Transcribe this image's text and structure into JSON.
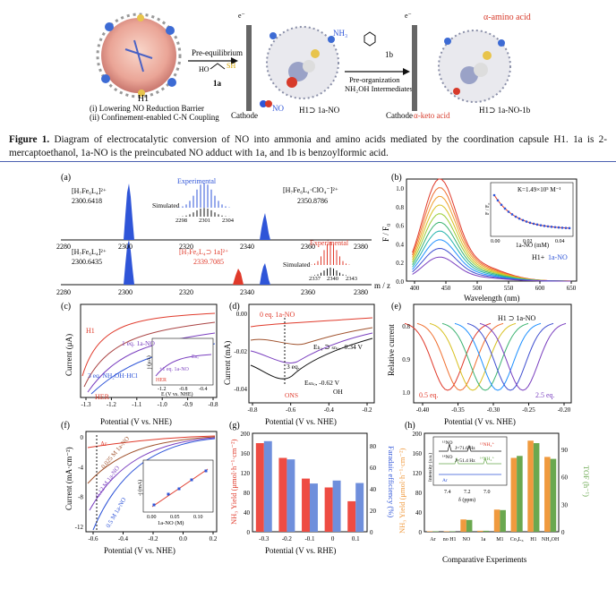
{
  "scheme": {
    "h1_label": "H1",
    "h1_notes": [
      "(i) Lowering NO Reduction Barrier",
      "(ii) Confinement-enabled C-N Coupling"
    ],
    "step1": "Pre-equilibrium",
    "reagent_1a": "1a",
    "sh": "SH",
    "ho": "HO",
    "cathode": "Cathode",
    "no": "NO",
    "nh3": "NH₃",
    "complex1": "H1⊃ 1a-NO",
    "step2_reagent": "1b",
    "step2a": "Pre-organization",
    "step2b": "NH₂OH Intermediates",
    "cathode2": "Cathode",
    "keto": "α-keto acid",
    "amino": "α-amino acid",
    "complex2": "H1⊃ 1a-NO-1b",
    "electron": "e⁻"
  },
  "caption": {
    "label": "Figure 1.",
    "text": "Diagram of electrocatalytic conversion of NO into ammonia and amino acids mediated by the coordination capsule H1. 1a is 2-mercaptoethanol, 1a-NO is the preincubated NO adduct with 1a, and 1b is benzoylformic acid."
  },
  "panels": {
    "a": {
      "label": "(a)",
      "xlabel": "m / z",
      "ticks": [
        "2280",
        "2300",
        "2320",
        "2340",
        "2360",
        "2380"
      ],
      "top": {
        "peak1": "[H₇Fe₆L₄]²⁺",
        "peak1_mz": "2300.6418",
        "peak2": "[H₇Fe₆L₄·ClO₄⁻]²⁺",
        "peak2_mz": "2350.8786",
        "exp": "Experimental",
        "sim": "Simulated",
        "inset_ticks": [
          "2298",
          "2301",
          "2304"
        ]
      },
      "bottom": {
        "peak1": "[H₇Fe₆L₄]²⁺",
        "peak1_mz": "2300.6435",
        "peak2": "[H₇Fe₆L₄⊃ 1a]²⁺",
        "peak2_mz": "2339.7085",
        "exp": "Experimental",
        "sim": "Simulated",
        "inset_ticks": [
          "2337",
          "2340",
          "2343"
        ]
      }
    },
    "b": {
      "label": "(b)",
      "ylabel": "F / F₀",
      "xlabel": "Wavelength (nm)",
      "xticks": [
        "400",
        "450",
        "500",
        "550",
        "600",
        "650"
      ],
      "yticks": [
        "0.0",
        "0.2",
        "0.4",
        "0.6",
        "0.8",
        "1.0"
      ],
      "legend_a": "H1+",
      "legend_b": "1a-NO",
      "inset_k": "K=1.49×10⁵ M⁻¹",
      "inset_xlabel": "1a-NO (mM)",
      "inset_ylabel": "F / F₀",
      "inset_xticks": [
        "0.00",
        "0.02",
        "0.04"
      ]
    },
    "c": {
      "label": "(c)",
      "ylabel": "Current (μA)",
      "xlabel": "Potential (V vs. NHE)",
      "xticks": [
        "-1.3",
        "-1.2",
        "-1.1",
        "-1.0",
        "-0.9",
        "-0.8"
      ],
      "h1": "H1",
      "her": "HER",
      "eq1": "1 eq. 1a-NO",
      "eq3": "3 eq. NH₂OH·HCl",
      "inset_ylabel": "j (μA)",
      "inset_xlabel": "E (V vs. NHE)",
      "inset_xticks": [
        "-1.2",
        "-0.8",
        "-0.4"
      ],
      "inset_her": "HER",
      "inset_eq": "+1 eq. 1a-NO",
      "inset_eno": "Eₙₒ"
    },
    "d": {
      "label": "(d)",
      "ylabel": "Current (mA)",
      "xlabel": "Potential (V vs. NHE)",
      "xticks": [
        "-0.8",
        "-0.6",
        "-0.4",
        "-0.2"
      ],
      "yticks": [
        "0.00",
        "-0.02",
        "-0.04"
      ],
      "eq0": "0 eq. 1a-NO",
      "eq3": "3 eq.",
      "e1": "Eₕ₁ ⊃ ₛₙₒ, -0.34 V",
      "e2": "Eₛₙₒ, -0.62 V",
      "ons": "ONS",
      "oh": "OH"
    },
    "e": {
      "label": "(e)",
      "ylabel": "Relative current",
      "xlabel": "Potential (V vs. NHE)",
      "xticks": [
        "-0.40",
        "-0.35",
        "-0.30",
        "-0.25",
        "-0.20"
      ],
      "yticks": [
        "0.8",
        "0.9",
        "1.0"
      ],
      "title": "H1 ⊃ 1a-NO",
      "eq0": "0.5 eq.",
      "eq1": "2.5 eq."
    },
    "f": {
      "label": "(f)",
      "ylabel": "Current (mA·cm⁻²)",
      "xlabel": "Potential (V vs. NHE)",
      "xticks": [
        "-0.6",
        "-0.4",
        "-0.2",
        "0.0",
        "0.2"
      ],
      "yticks": [
        "0",
        "-4",
        "-8",
        "-12"
      ],
      "ar": "Ar",
      "c1": "0.025 M 1a-NO",
      "c2": "0.12 M 1a-NO",
      "c3": "0.5 M 1a-NO",
      "inset_ylabel": "-j (mA)",
      "inset_xlabel": "1a-NO (M)",
      "inset_xticks": [
        "0.00",
        "0.05",
        "0.10"
      ],
      "inset_yticks": [
        "3",
        "6",
        "9"
      ]
    },
    "g": {
      "label": "(g)",
      "ylabel": "NH₃ Yield (μmol·h⁻¹·cm⁻²)",
      "ylabel2": "Faradaic efficiency (%)",
      "xlabel": "Potential (V vs. RHE)",
      "categories": [
        "-0.3",
        "-0.2",
        "-0.1",
        "0",
        "0.1"
      ],
      "yticks": [
        "0",
        "40",
        "80",
        "120",
        "160",
        "200"
      ],
      "y2ticks": [
        "0",
        "20",
        "40",
        "60",
        "80"
      ]
    },
    "h": {
      "label": "(h)",
      "ylabel": "NH₃ Yield (μmol·h⁻¹·cm⁻²)",
      "ylabel2": "TOF (h⁻¹)",
      "xlabel": "Comparative Experiments",
      "categories": [
        "Ar",
        "no H1",
        "NO",
        "1a",
        "M1",
        "Co₄L₆",
        "H1",
        "NH₂OH"
      ],
      "yticks": [
        "0",
        "40",
        "80",
        "120",
        "160",
        "200"
      ],
      "y2ticks": [
        "0",
        "30",
        "60",
        "90"
      ],
      "inset_xlabel": "δ (ppm)",
      "inset_ylabel": "Intensity (a.u.)",
      "inset_xticks": [
        "7.4",
        "7.2",
        "7.0"
      ],
      "inset_j1": "J=71.6 Hz",
      "inset_j2": "J=51.4 Hz",
      "inset_15n": "¹⁵NO",
      "inset_14n": "¹⁴NO",
      "inset_ar": "Ar",
      "inset_nh4a": "¹⁵NH₄⁺",
      "inset_nh4b": "¹⁴NH₄⁺"
    }
  },
  "chart_data": [
    {
      "type": "bar",
      "title": "",
      "xlabel": "Potential (V vs. RHE)",
      "ylabel": "NH₃ Yield (μmol·h⁻¹·cm⁻²)",
      "categories": [
        "-0.3",
        "-0.2",
        "-0.1",
        "0",
        "0.1"
      ],
      "series": [
        {
          "name": "",
          "values": [
            180,
            150,
            108,
            90,
            62
          ]
        },
        {
          "name": "",
          "values": [
            184,
            147,
            98,
            104,
            99
          ]
        }
      ],
      "ylim": [
        0,
        200
      ]
    },
    {
      "type": "bar",
      "title": "",
      "xlabel": "Comparative Experiments",
      "ylabel": "NH₃ Yield (μmol·h⁻¹·cm⁻²)",
      "categories": [
        "Ar",
        "no H1",
        "NO",
        "1a",
        "M1",
        "Co₄L₆",
        "H1",
        "NH₂OH"
      ],
      "series": [
        {
          "name": "",
          "values": [
            1,
            1,
            25,
            2,
            45,
            150,
            185,
            152
          ]
        },
        {
          "name": "",
          "values": [
            1,
            1,
            24,
            2,
            44,
            154,
            180,
            148
          ]
        }
      ],
      "ylim": [
        0,
        200
      ]
    }
  ],
  "colors": {
    "blue": "#2f55d8",
    "red": "#e03a2b",
    "purple": "#7a3fbf",
    "green": "#6aa84f",
    "orange": "#f09a3e",
    "bar_red": "#ee4c43",
    "bar_blue": "#6f8fdc"
  }
}
